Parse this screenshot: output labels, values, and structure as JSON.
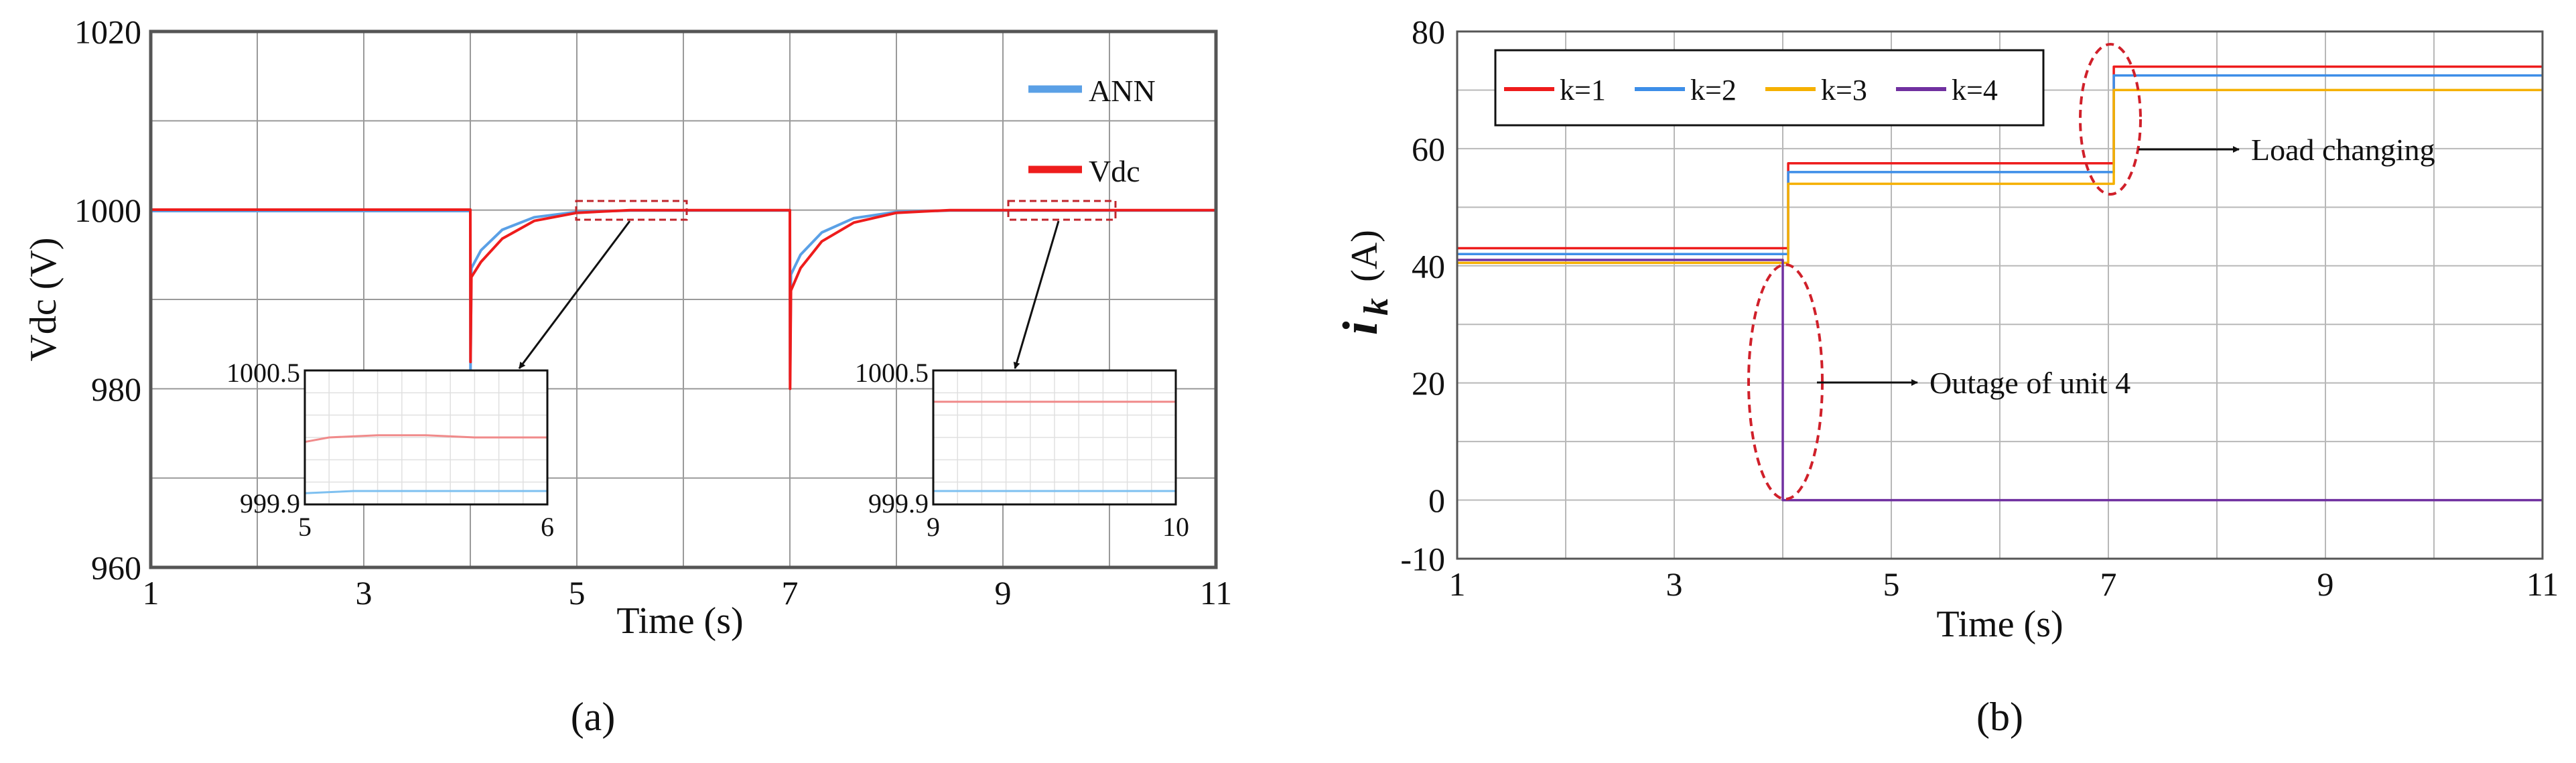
{
  "chart_data": [
    {
      "type": "line",
      "panel_label": "(a)",
      "xlabel": "Time (s)",
      "ylabel": "Vdc (V)",
      "xlim": [
        1,
        11
      ],
      "ylim": [
        960,
        1020
      ],
      "xticks": [
        1,
        3,
        5,
        7,
        9,
        11
      ],
      "yticks": [
        960,
        980,
        1000,
        1020
      ],
      "grid": true,
      "legend_position": "top-right",
      "series": [
        {
          "name": "ANN",
          "color": "#5aa0e6",
          "x": [
            1,
            4,
            4.002,
            4.01,
            4.1,
            4.3,
            4.6,
            5,
            5.5,
            7,
            7.002,
            7.01,
            7.1,
            7.3,
            7.6,
            8,
            8.5,
            11
          ],
          "y": [
            999.9,
            999.9,
            982,
            993.5,
            995.5,
            997.8,
            999.2,
            999.8,
            999.95,
            999.95,
            981,
            992.8,
            995,
            997.5,
            999.1,
            999.8,
            999.95,
            999.95
          ]
        },
        {
          "name": "Vdc",
          "color": "#ee1c1c",
          "x": [
            1,
            4,
            4.002,
            4.01,
            4.1,
            4.3,
            4.6,
            5,
            5.5,
            7,
            7.002,
            7.01,
            7.1,
            7.3,
            7.6,
            8,
            8.5,
            11
          ],
          "y": [
            1000.05,
            1000.05,
            983,
            992.5,
            994.2,
            996.8,
            998.8,
            999.7,
            1000.0,
            1000.0,
            980,
            991,
            993.5,
            996.5,
            998.6,
            999.7,
            1000.0,
            1000.0
          ]
        }
      ],
      "insets": [
        {
          "xlim": [
            5,
            6
          ],
          "ylim": [
            999.9,
            1000.5
          ],
          "x_tick_labels": [
            "5",
            "6"
          ],
          "y_tick_labels": [
            "1000.5",
            "999.9"
          ],
          "series": [
            {
              "name": "Vdc",
              "x": [
                5,
                5.1,
                5.3,
                5.5,
                5.7,
                5.9,
                6
              ],
              "y": [
                1000.18,
                1000.2,
                1000.21,
                1000.21,
                1000.2,
                1000.2,
                1000.2
              ]
            },
            {
              "name": "ANN",
              "x": [
                5,
                5.2,
                5.5,
                5.8,
                6
              ],
              "y": [
                999.95,
                999.96,
                999.96,
                999.96,
                999.96
              ]
            }
          ]
        },
        {
          "xlim": [
            9,
            10
          ],
          "ylim": [
            999.9,
            1000.5
          ],
          "x_tick_labels": [
            "9",
            "10"
          ],
          "y_tick_labels": [
            "1000.5",
            "999.9"
          ],
          "series": [
            {
              "name": "Vdc",
              "x": [
                9,
                10
              ],
              "y": [
                1000.36,
                1000.36
              ]
            },
            {
              "name": "ANN",
              "x": [
                9,
                10
              ],
              "y": [
                999.96,
                999.96
              ]
            }
          ]
        }
      ]
    },
    {
      "type": "line",
      "panel_label": "(b)",
      "xlabel": "Time (s)",
      "ylabel_symbol": "i",
      "ylabel_subscript": "k",
      "ylabel_unit": "(A)",
      "xlim": [
        1,
        11
      ],
      "ylim": [
        -10,
        80
      ],
      "xticks": [
        1,
        3,
        5,
        7,
        9,
        11
      ],
      "yticks": [
        -10,
        0,
        20,
        40,
        60,
        80
      ],
      "grid": true,
      "legend_position": "top-left",
      "series": [
        {
          "name": "k=1",
          "color": "#ee1c1c",
          "x": [
            1,
            4.05,
            4.05,
            7.05,
            7.05,
            11
          ],
          "y": [
            43,
            43,
            57.5,
            57.5,
            74,
            74
          ]
        },
        {
          "name": "k=2",
          "color": "#3d8ee8",
          "x": [
            1,
            4.05,
            4.05,
            7.05,
            7.05,
            11
          ],
          "y": [
            42,
            42,
            56,
            56,
            72.5,
            72.5
          ]
        },
        {
          "name": "k=3",
          "color": "#f5b000",
          "x": [
            1,
            4.05,
            4.05,
            7.05,
            7.05,
            11
          ],
          "y": [
            40.5,
            40.5,
            54,
            54,
            70,
            70
          ]
        },
        {
          "name": "k=4",
          "color": "#7030a0",
          "x": [
            1,
            4.0,
            4.0,
            11
          ],
          "y": [
            41,
            41,
            0,
            0
          ]
        }
      ],
      "annotations": [
        {
          "text": "Outage of  unit 4",
          "target_x": 4.0,
          "target_y": 20
        },
        {
          "text": "Load changing",
          "target_x": 7.0,
          "target_y": 65
        }
      ]
    }
  ]
}
